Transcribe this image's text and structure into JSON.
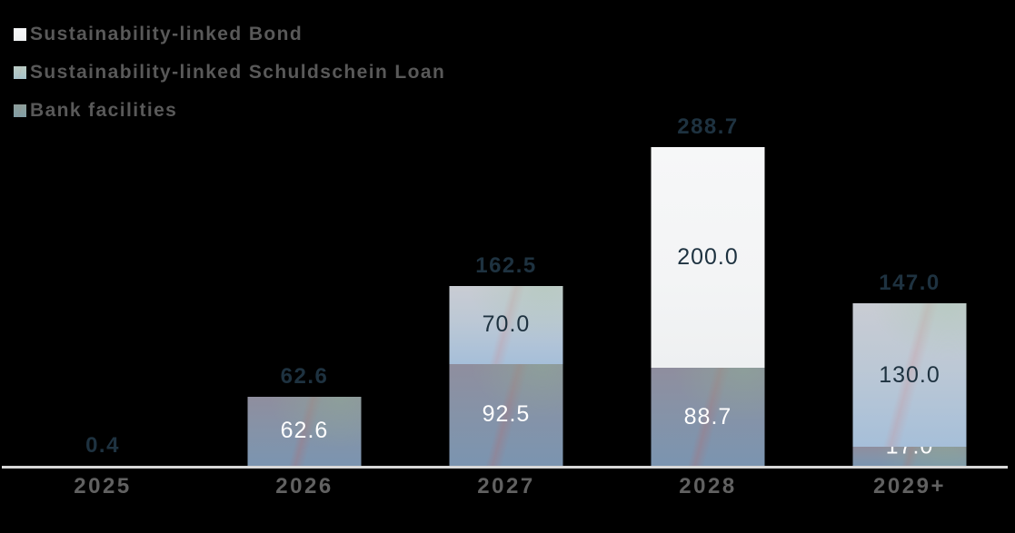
{
  "colors": {
    "background": "#000000",
    "total_label": "#1e3240",
    "segment_label_dark": "#1e3240",
    "segment_label_light": "#ffffff",
    "legend_text": "#595959",
    "axis_label": "#616161",
    "axis_line": "#d8d8d8",
    "bond_fill": "#f3f4f5",
    "schuldschein_fill": "#b9c8d6",
    "bank_fill": "#8593a8"
  },
  "legend": {
    "items": [
      {
        "key": "bond",
        "label": "Sustainability-linked Bond"
      },
      {
        "key": "schuldschein",
        "label": "Sustainability-linked Schuldschein Loan"
      },
      {
        "key": "bank",
        "label": "Bank facilities"
      }
    ]
  },
  "chart_data": {
    "type": "bar",
    "stacked": true,
    "title": "",
    "xlabel": "",
    "ylabel": "",
    "grid": false,
    "legend_position": "top-left",
    "ylim": [
      0,
      300
    ],
    "categories": [
      "2025",
      "2026",
      "2027",
      "2028",
      "2029+"
    ],
    "series": [
      {
        "name": "Bank facilities",
        "key": "bank",
        "values": [
          0.4,
          62.6,
          92.5,
          88.7,
          17.0
        ],
        "labels": [
          "",
          "62.6",
          "92.5",
          "88.7",
          "17.0"
        ],
        "label_style": "light"
      },
      {
        "name": "Sustainability-linked Schuldschein Loan",
        "key": "schuldschein",
        "values": [
          0,
          0,
          70.0,
          0,
          130.0
        ],
        "labels": [
          "",
          "",
          "70.0",
          "",
          "130.0"
        ],
        "label_style": "dark"
      },
      {
        "name": "Sustainability-linked Bond",
        "key": "bond",
        "values": [
          0,
          0,
          0,
          200.0,
          0
        ],
        "labels": [
          "",
          "",
          "",
          "200.0",
          ""
        ],
        "label_style": "dark"
      }
    ],
    "totals": [
      0.4,
      62.6,
      162.5,
      288.7,
      147.0
    ],
    "total_labels": [
      "0.4",
      "62.6",
      "162.5",
      "288.7",
      "147.0"
    ]
  }
}
